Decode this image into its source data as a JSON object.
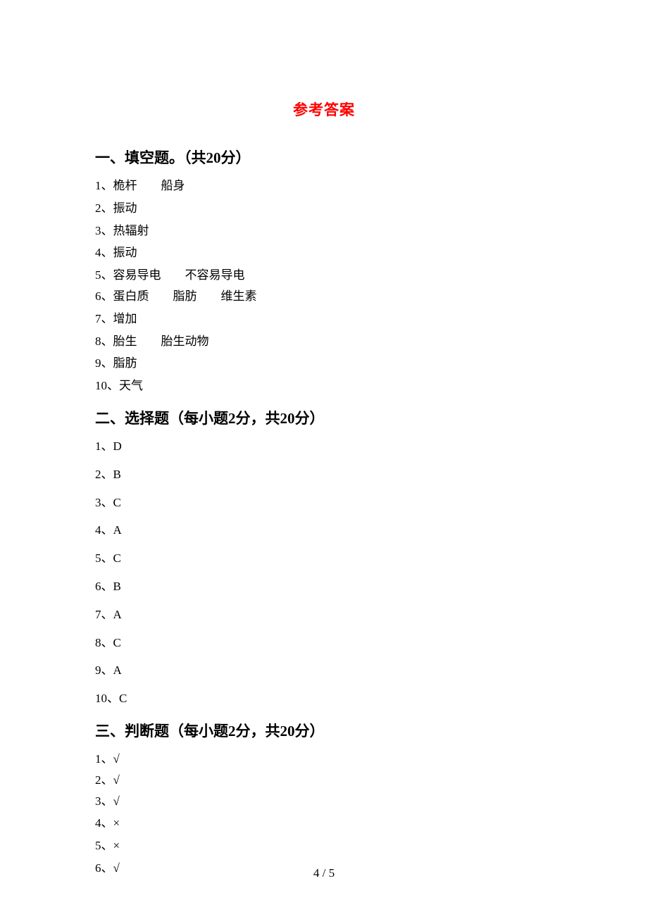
{
  "title": "参考答案",
  "section1": {
    "header": "一、填空题。（共20分）",
    "answers": [
      "1、桅杆  船身",
      "2、振动",
      "3、热辐射",
      "4、振动",
      "5、容易导电  不容易导电",
      "6、蛋白质  脂肪  维生素",
      "7、增加",
      "8、胎生  胎生动物",
      "9、脂肪",
      "10、天气"
    ]
  },
  "section2": {
    "header": "二、选择题（每小题2分，共20分）",
    "answers": [
      "1、D",
      "2、B",
      "3、C",
      "4、A",
      "5、C",
      "6、B",
      "7、A",
      "8、C",
      "9、A",
      "10、C"
    ]
  },
  "section3": {
    "header": "三、判断题（每小题2分，共20分）",
    "answers": [
      "1、√",
      "2、√",
      "3、√",
      "4、×",
      "5、×",
      "6、√"
    ]
  },
  "pageNumber": "4 / 5"
}
